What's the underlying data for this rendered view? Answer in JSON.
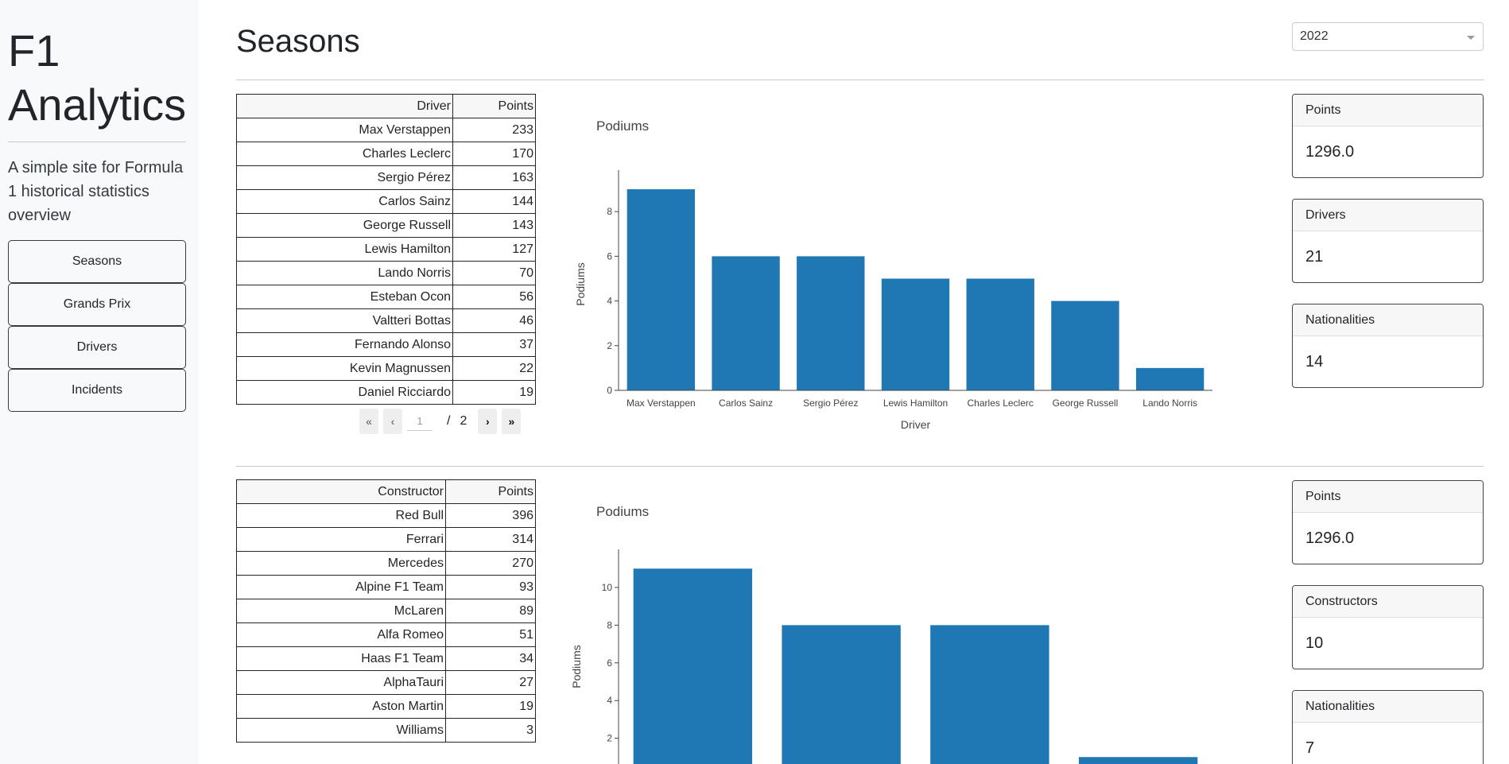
{
  "app": {
    "title": "F1 Analytics",
    "description": "A simple site for Formula 1 historical statistics overview"
  },
  "nav": {
    "items": [
      {
        "label": "Seasons"
      },
      {
        "label": "Grands Prix"
      },
      {
        "label": "Drivers"
      },
      {
        "label": "Incidents"
      }
    ]
  },
  "page": {
    "title": "Seasons",
    "year_select": "2022"
  },
  "drivers_table": {
    "headers": [
      "Driver",
      "Points"
    ],
    "rows": [
      [
        "Max Verstappen",
        "233"
      ],
      [
        "Charles Leclerc",
        "170"
      ],
      [
        "Sergio Pérez",
        "163"
      ],
      [
        "Carlos Sainz",
        "144"
      ],
      [
        "George Russell",
        "143"
      ],
      [
        "Lewis Hamilton",
        "127"
      ],
      [
        "Lando Norris",
        "70"
      ],
      [
        "Esteban Ocon",
        "56"
      ],
      [
        "Valtteri Bottas",
        "46"
      ],
      [
        "Fernando Alonso",
        "37"
      ],
      [
        "Kevin Magnussen",
        "22"
      ],
      [
        "Daniel Ricciardo",
        "19"
      ]
    ],
    "pager": {
      "current": "1",
      "separator": "/",
      "total": "2"
    }
  },
  "constructors_table": {
    "headers": [
      "Constructor",
      "Points"
    ],
    "rows": [
      [
        "Red Bull",
        "396"
      ],
      [
        "Ferrari",
        "314"
      ],
      [
        "Mercedes",
        "270"
      ],
      [
        "Alpine F1 Team",
        "93"
      ],
      [
        "McLaren",
        "89"
      ],
      [
        "Alfa Romeo",
        "51"
      ],
      [
        "Haas F1 Team",
        "34"
      ],
      [
        "AlphaTauri",
        "27"
      ],
      [
        "Aston Martin",
        "19"
      ],
      [
        "Williams",
        "3"
      ]
    ]
  },
  "chart_data": [
    {
      "type": "bar",
      "title": "Podiums",
      "xlabel": "Driver",
      "ylabel": "Podiums",
      "categories": [
        "Max Verstappen",
        "Carlos Sainz",
        "Sergio Pérez",
        "Lewis Hamilton",
        "Charles Leclerc",
        "George Russell",
        "Lando Norris"
      ],
      "values": [
        9,
        6,
        6,
        5,
        5,
        4,
        1
      ],
      "ylim": [
        0,
        9.5
      ],
      "yticks": [
        0,
        2,
        4,
        6,
        8
      ],
      "color": "#1f77b4"
    },
    {
      "type": "bar",
      "title": "Podiums",
      "xlabel": "",
      "ylabel": "Podiums",
      "categories": [
        "",
        "",
        "",
        ""
      ],
      "values": [
        11,
        8,
        8,
        1
      ],
      "ylim": [
        0,
        11.6
      ],
      "yticks": [
        2,
        4,
        6,
        8,
        10
      ],
      "color": "#1f77b4"
    }
  ],
  "driver_stats": [
    {
      "label": "Points",
      "value": "1296.0"
    },
    {
      "label": "Drivers",
      "value": "21"
    },
    {
      "label": "Nationalities",
      "value": "14"
    }
  ],
  "constructor_stats": [
    {
      "label": "Points",
      "value": "1296.0"
    },
    {
      "label": "Constructors",
      "value": "10"
    },
    {
      "label": "Nationalities",
      "value": "7"
    }
  ]
}
